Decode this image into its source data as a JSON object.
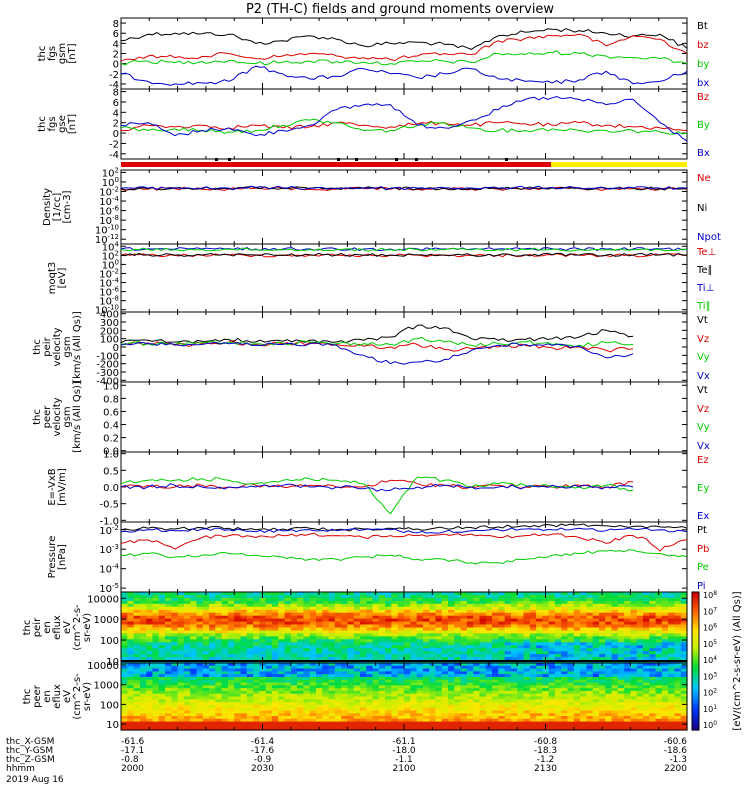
{
  "title": "P2 (TH-C) fields and ground moments overview",
  "colors": {
    "black": "#000000",
    "red": "#dd0000",
    "green": "#00cc00",
    "blue": "#0000cc",
    "yellow": "#ffee00"
  },
  "chart_data": [
    {
      "type": "line",
      "ylabel": [
        "thc",
        "fgs",
        "gsm",
        "[nT]"
      ],
      "yticks": [
        "8",
        "6",
        "4",
        "2",
        "0",
        "-2",
        "-4"
      ],
      "series": [
        {
          "name": "Bt",
          "color": "black",
          "values": [
            4.5,
            5.8,
            6.0,
            5.9,
            5.8,
            4.0,
            4.5,
            5.5,
            4.8,
            3.5,
            4.0,
            4.2,
            3.8,
            2.8,
            5.5,
            6.2,
            6.8,
            6.5,
            6.0,
            5.5,
            5.8,
            3.0
          ]
        },
        {
          "name": "bz",
          "color": "red",
          "values": [
            0.5,
            1.5,
            1.2,
            1.4,
            2.0,
            1.0,
            1.5,
            2.0,
            1.5,
            1.2,
            0.8,
            1.5,
            2.0,
            1.8,
            4.5,
            5.0,
            5.5,
            5.8,
            3.5,
            5.5,
            4.8,
            2.0
          ]
        },
        {
          "name": "by",
          "color": "green",
          "values": [
            0.0,
            0.5,
            0.2,
            0.4,
            0.6,
            0.0,
            0.3,
            0.5,
            0.4,
            0.3,
            0.0,
            0.4,
            0.5,
            0.2,
            2.0,
            1.8,
            2.2,
            2.0,
            1.5,
            1.2,
            1.0,
            0.0
          ]
        },
        {
          "name": "bx",
          "color": "blue",
          "values": [
            -2.0,
            -3.5,
            -4.0,
            -3.8,
            -3.5,
            -0.5,
            -2.0,
            -3.0,
            -2.5,
            -1.0,
            -2.0,
            -2.8,
            -2.0,
            -1.0,
            -3.0,
            -3.5,
            -3.8,
            -3.2,
            -1.5,
            -4.0,
            -3.5,
            -1.5
          ]
        }
      ]
    },
    {
      "type": "line",
      "ylabel": [
        "thc",
        "fgs",
        "gse",
        "[nT]"
      ],
      "yticks": [
        "8",
        "6",
        "4",
        "2",
        "0",
        "-2",
        "-4"
      ],
      "series": [
        {
          "name": "Bz",
          "color": "red",
          "values": [
            0.5,
            1.5,
            1.2,
            1.5,
            1.0,
            1.5,
            1.0,
            1.2,
            2.0,
            1.5,
            1.2,
            1.8,
            2.0,
            1.5,
            2.0,
            1.8,
            1.5,
            2.0,
            1.5,
            1.2,
            1.0,
            0.5
          ]
        },
        {
          "name": "By",
          "color": "green",
          "values": [
            1.0,
            0.5,
            0.8,
            0.5,
            0.2,
            0.5,
            1.5,
            2.5,
            2.0,
            0.5,
            0.5,
            1.5,
            2.0,
            1.0,
            0.5,
            0.5,
            0.8,
            0.5,
            0.5,
            0.5,
            0.2,
            0.0
          ]
        },
        {
          "name": "Bx",
          "color": "blue",
          "values": [
            1.5,
            2.0,
            -0.5,
            0.5,
            1.0,
            -0.5,
            0.5,
            1.5,
            4.5,
            5.5,
            5.5,
            1.5,
            1.0,
            2.5,
            4.5,
            6.5,
            6.8,
            6.5,
            5.5,
            6.5,
            2.0,
            -1.5
          ]
        }
      ]
    },
    {
      "type": "line",
      "ylabel": [
        "Density",
        "[1/cc]",
        "[cm-3]"
      ],
      "yticks": [
        "10^2",
        "10^0",
        "10^-2",
        "10^-4",
        "10^-6",
        "10^-8",
        "10^-10",
        "10^-12"
      ],
      "series": [
        {
          "name": "Ne",
          "color": "red",
          "values": [
            0.03,
            0.03,
            0.04,
            0.03,
            0.03,
            0.05,
            0.04,
            0.03,
            0.03,
            0.04,
            0.03,
            0.03,
            0.04,
            0.03,
            0.03,
            0.04,
            0.05,
            0.04,
            0.03,
            0.04,
            0.03,
            0.03
          ]
        },
        {
          "name": "Ni",
          "color": "black",
          "values": [
            0.04,
            0.04,
            0.05,
            0.04,
            0.04,
            0.06,
            0.05,
            0.04,
            0.04,
            0.05,
            0.04,
            0.04,
            0.05,
            0.04,
            0.04,
            0.05,
            0.06,
            0.05,
            0.04,
            0.05,
            0.04,
            0.04
          ]
        },
        {
          "name": "Npot",
          "color": "blue",
          "values": [
            0.05,
            0.05,
            0.06,
            0.05,
            0.05,
            0.07,
            0.06,
            0.05,
            0.05,
            0.06,
            0.05,
            0.05,
            0.06,
            0.05,
            0.05,
            0.06,
            0.07,
            0.06,
            0.05,
            0.06,
            0.05,
            0.05
          ]
        }
      ]
    },
    {
      "type": "line",
      "ylabel": [
        "moqt3",
        "[eV]"
      ],
      "yticks": [
        "10^4",
        "10^2",
        "10^0",
        "10^-2",
        "10^-4",
        "10^-6",
        "10^-8",
        "10^-10"
      ],
      "series": [
        {
          "name": "Te⊥",
          "color": "red",
          "values": [
            100,
            110,
            90,
            100,
            120,
            100,
            90,
            110,
            100,
            95,
            100,
            110,
            100,
            90,
            100,
            110,
            120,
            100,
            90,
            100,
            110,
            100
          ]
        },
        {
          "name": "Te∥",
          "color": "black",
          "values": [
            120,
            130,
            110,
            120,
            140,
            120,
            110,
            130,
            120,
            115,
            120,
            130,
            120,
            110,
            120,
            130,
            140,
            120,
            110,
            120,
            130,
            120
          ]
        },
        {
          "name": "Ti⊥",
          "color": "blue",
          "values": [
            2500,
            2600,
            2400,
            2500,
            2700,
            2500,
            2400,
            2600,
            2500,
            2450,
            2500,
            2600,
            2500,
            2400,
            2500,
            2600,
            2700,
            2500,
            2400,
            2500,
            2600,
            2500
          ]
        },
        {
          "name": "Ti∥",
          "color": "green",
          "values": [
            1800,
            1900,
            1700,
            1800,
            2000,
            1800,
            1700,
            1900,
            1800,
            1750,
            1800,
            1900,
            1800,
            1700,
            1800,
            1900,
            2000,
            1800,
            1700,
            1800,
            1900,
            1800
          ]
        }
      ]
    },
    {
      "type": "line",
      "ylabel": [
        "thc",
        "peir",
        "velocity",
        "gsm",
        "[km/s (All Qs)]"
      ],
      "yticks": [
        "400",
        "300",
        "200",
        "100",
        "0",
        "-100",
        "-200",
        "-300",
        "-400"
      ],
      "series": [
        {
          "name": "Vt",
          "color": "black",
          "values": [
            50,
            80,
            60,
            70,
            90,
            60,
            70,
            80,
            60,
            80,
            120,
            260,
            230,
            100,
            80,
            90,
            100,
            120,
            200,
            130,
            null,
            null
          ]
        },
        {
          "name": "Vz",
          "color": "red",
          "values": [
            30,
            50,
            20,
            40,
            60,
            30,
            40,
            50,
            30,
            10,
            0,
            30,
            -30,
            -20,
            0,
            20,
            -10,
            0,
            -40,
            -20,
            null,
            null
          ]
        },
        {
          "name": "Vy",
          "color": "green",
          "values": [
            40,
            40,
            30,
            50,
            60,
            40,
            50,
            60,
            40,
            40,
            30,
            100,
            60,
            20,
            40,
            60,
            30,
            20,
            50,
            30,
            null,
            null
          ]
        },
        {
          "name": "Vx",
          "color": "blue",
          "values": [
            20,
            40,
            30,
            30,
            40,
            20,
            30,
            40,
            20,
            -100,
            -200,
            -180,
            -150,
            -40,
            20,
            30,
            20,
            10,
            -130,
            -80,
            null,
            null
          ]
        }
      ]
    },
    {
      "type": "line",
      "ylabel": [
        "thc",
        "peer",
        "velocity",
        "gsm",
        "[km/s (All Qs)]"
      ],
      "yticks": [
        "1.0",
        "0.8",
        "0.6",
        "0.4",
        "0.2",
        "0.0"
      ],
      "series": [
        {
          "name": "Vt",
          "color": "black",
          "values": []
        },
        {
          "name": "Vz",
          "color": "red",
          "values": []
        },
        {
          "name": "Vy",
          "color": "green",
          "values": []
        },
        {
          "name": "Vx",
          "color": "blue",
          "values": []
        }
      ]
    },
    {
      "type": "line",
      "ylabel": [
        "E=-VxB",
        "[mV/m]"
      ],
      "yticks": [
        "1.0",
        "0.5",
        "0.0",
        "-0.5",
        "-1.0"
      ],
      "series": [
        {
          "name": "Ez",
          "color": "red",
          "values": [
            0.0,
            0.05,
            0.0,
            0.05,
            0.0,
            0.05,
            0.0,
            0.05,
            0.0,
            0.0,
            0.2,
            0.1,
            0.05,
            0.0,
            0.05,
            0.0,
            0.0,
            0.05,
            0.0,
            0.15,
            null,
            null
          ]
        },
        {
          "name": "Ey",
          "color": "green",
          "values": [
            0.1,
            0.2,
            0.2,
            0.25,
            0.2,
            0.1,
            0.2,
            0.25,
            0.2,
            0.1,
            -0.8,
            0.3,
            0.2,
            0.0,
            0.1,
            0.05,
            0.0,
            0.0,
            0.05,
            -0.1,
            null,
            null
          ]
        },
        {
          "name": "Ex",
          "color": "blue",
          "values": [
            0.0,
            0.0,
            0.05,
            0.0,
            0.0,
            0.0,
            0.05,
            0.0,
            0.0,
            -0.05,
            -0.1,
            0.0,
            0.05,
            0.0,
            0.0,
            0.0,
            0.05,
            0.0,
            0.0,
            0.0,
            null,
            null
          ]
        }
      ]
    },
    {
      "type": "line",
      "ylabel": [
        "Pressure",
        "[nPa]"
      ],
      "yticks": [
        "10^-2",
        "10^-3",
        "10^-4",
        "10^-5"
      ],
      "series": [
        {
          "name": "Pt",
          "color": "black",
          "values": [
            0.01,
            0.012,
            0.011,
            0.013,
            0.012,
            0.01,
            0.011,
            0.012,
            0.01,
            0.011,
            0.012,
            0.011,
            0.012,
            0.013,
            0.014,
            0.016,
            0.017,
            0.018,
            0.016,
            0.015,
            0.014,
            0.012
          ]
        },
        {
          "name": "Pb",
          "color": "red",
          "values": [
            0.002,
            0.003,
            0.001,
            0.004,
            0.005,
            0.004,
            0.005,
            0.006,
            0.005,
            0.004,
            0.005,
            0.005,
            0.006,
            0.006,
            0.004,
            0.005,
            0.006,
            0.004,
            0.002,
            0.005,
            0.0008,
            0.003
          ]
        },
        {
          "name": "Pe",
          "color": "green",
          "values": [
            0.0005,
            0.0006,
            0.0004,
            0.0005,
            0.0006,
            0.0005,
            0.0004,
            0.0003,
            0.0003,
            0.0004,
            0.0005,
            0.0003,
            0.0003,
            0.0002,
            0.0002,
            0.0003,
            0.0005,
            0.0006,
            0.0008,
            0.0009,
            0.0006,
            0.0004
          ]
        },
        {
          "name": "Pi",
          "color": "blue",
          "values": [
            0.008,
            0.01,
            0.009,
            0.011,
            0.01,
            0.008,
            0.009,
            0.01,
            0.009,
            0.01,
            0.01,
            0.007,
            0.008,
            0.009,
            0.01,
            0.011,
            0.01,
            0.012,
            0.009,
            0.011,
            0.01,
            0.008
          ]
        }
      ]
    },
    {
      "type": "heatmap",
      "ylabel": [
        "thc",
        "peir",
        "en",
        "eflux",
        "eV",
        "(cm^2-s-",
        "sr-eV)"
      ],
      "yticks": [
        "10000",
        "1000",
        "100",
        "10"
      ]
    },
    {
      "type": "heatmap",
      "ylabel": [
        "thc",
        "peer",
        "en",
        "eflux",
        "eV",
        "(cm^2-s-",
        "sr-eV)"
      ],
      "yticks": [
        "10000",
        "1000",
        "100",
        "10"
      ]
    }
  ],
  "colorbar": {
    "label": "[eV/(cm^2-s-sr-eV) (All Qs)]",
    "ticks": [
      "10^8",
      "10^7",
      "10^6",
      "10^5",
      "10^4",
      "10^3",
      "10^2",
      "10^1",
      "10^0"
    ]
  },
  "xaxis": {
    "rows": [
      {
        "label": "thc_X-GSM",
        "values": [
          "-61.6",
          "-61.4",
          "-61.1",
          "-60.8",
          "-60.6"
        ]
      },
      {
        "label": "thc_Y-GSM",
        "values": [
          "-17.1",
          "-17.6",
          "-18.0",
          "-18.3",
          "-18.6"
        ]
      },
      {
        "label": "thc_Z-GSM",
        "values": [
          "-0.8",
          "-0.9",
          "-1.1",
          "-1.2",
          "-1.3"
        ]
      },
      {
        "label": "hhmm",
        "values": [
          "2000",
          "2030",
          "2100",
          "2130",
          "2200"
        ]
      }
    ],
    "date": "2019 Aug 16"
  }
}
